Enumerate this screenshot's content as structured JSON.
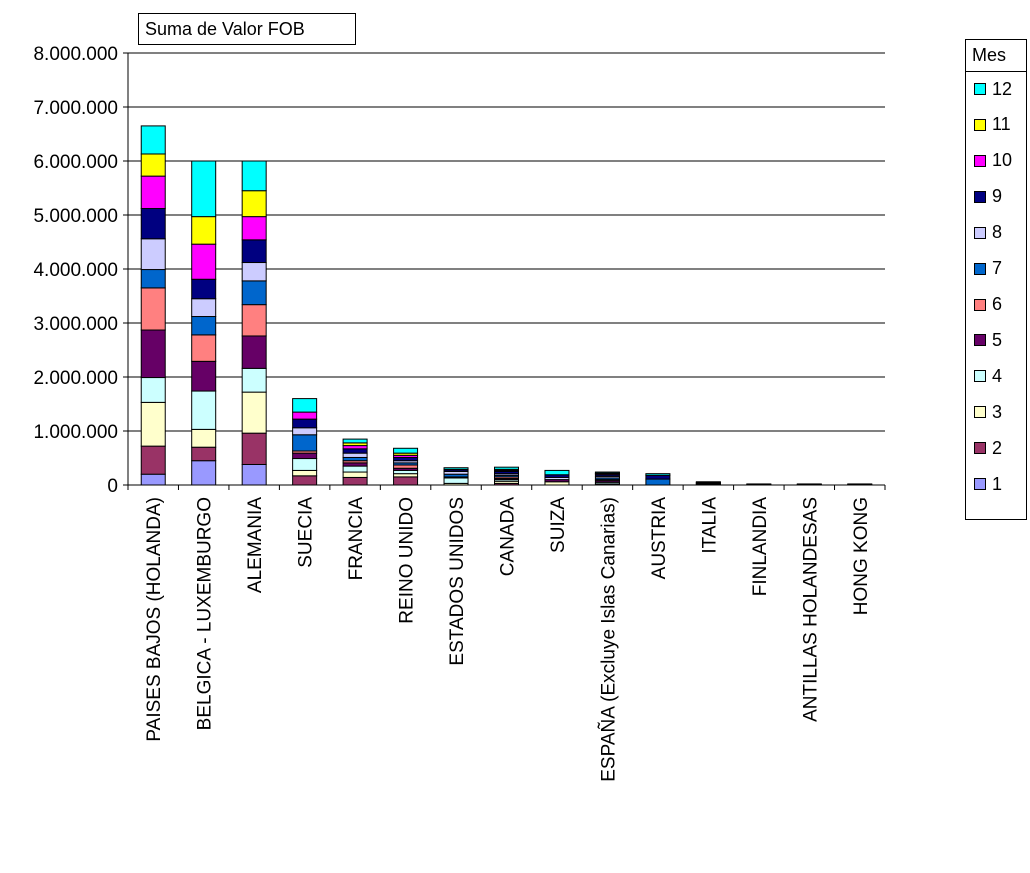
{
  "data_field_button": "Suma de Valor FOB",
  "legend_title": "Mes",
  "chart_data": {
    "type": "bar",
    "stacked": true,
    "ylim": [
      0,
      8000000
    ],
    "yticks": [
      0,
      1000000,
      2000000,
      3000000,
      4000000,
      5000000,
      6000000,
      7000000,
      8000000
    ],
    "ytick_labels": [
      "0",
      "1.000.000",
      "2.000.000",
      "3.000.000",
      "4.000.000",
      "5.000.000",
      "6.000.000",
      "7.000.000",
      "8.000.000"
    ],
    "grid": true,
    "legend_position": "right",
    "categories": [
      "PAISES BAJOS (HOLANDA)",
      "BELGICA - LUXEMBURGO",
      "ALEMANIA",
      "SUECIA",
      "FRANCIA",
      "REINO UNIDO",
      "ESTADOS UNIDOS",
      "CANADA",
      "SUIZA",
      "ESPAÑA (Excluye Islas Canarias)",
      "AUSTRIA",
      "ITALIA",
      "FINLANDIA",
      "ANTILLAS HOLANDESAS",
      "HONG KONG"
    ],
    "series": [
      {
        "name": "1",
        "color": "#9999FF",
        "values": [
          200000,
          450000,
          380000,
          0,
          0,
          0,
          0,
          0,
          0,
          0,
          0,
          0,
          0,
          0,
          0
        ]
      },
      {
        "name": "2",
        "color": "#993366",
        "values": [
          520000,
          250000,
          580000,
          170000,
          140000,
          150000,
          0,
          30000,
          0,
          0,
          0,
          0,
          0,
          0,
          0
        ]
      },
      {
        "name": "3",
        "color": "#FFFFCC",
        "values": [
          810000,
          330000,
          760000,
          100000,
          100000,
          60000,
          30000,
          40000,
          60000,
          20000,
          0,
          0,
          0,
          0,
          0
        ]
      },
      {
        "name": "4",
        "color": "#CCFFFF",
        "values": [
          460000,
          710000,
          440000,
          220000,
          110000,
          60000,
          100000,
          30000,
          0,
          30000,
          0,
          0,
          0,
          0,
          0
        ]
      },
      {
        "name": "5",
        "color": "#660066",
        "values": [
          880000,
          550000,
          600000,
          100000,
          60000,
          40000,
          20000,
          20000,
          40000,
          30000,
          0,
          10000,
          0,
          0,
          0
        ]
      },
      {
        "name": "6",
        "color": "#FF8080",
        "values": [
          780000,
          490000,
          580000,
          40000,
          40000,
          60000,
          0,
          30000,
          0,
          20000,
          0,
          0,
          0,
          0,
          0
        ]
      },
      {
        "name": "7",
        "color": "#0066CC",
        "values": [
          340000,
          340000,
          440000,
          300000,
          60000,
          40000,
          50000,
          30000,
          0,
          30000,
          110000,
          10000,
          10000,
          0,
          0
        ]
      },
      {
        "name": "8",
        "color": "#CCCCFF",
        "values": [
          570000,
          330000,
          340000,
          130000,
          80000,
          40000,
          50000,
          30000,
          40000,
          30000,
          0,
          10000,
          0,
          0,
          10000
        ]
      },
      {
        "name": "9",
        "color": "#000080",
        "values": [
          560000,
          360000,
          420000,
          160000,
          80000,
          60000,
          30000,
          40000,
          50000,
          30000,
          70000,
          10000,
          0,
          10000,
          0
        ]
      },
      {
        "name": "10",
        "color": "#FF00FF",
        "values": [
          600000,
          650000,
          430000,
          130000,
          60000,
          40000,
          0,
          20000,
          0,
          20000,
          0,
          10000,
          0,
          0,
          0
        ]
      },
      {
        "name": "11",
        "color": "#FFFF00",
        "values": [
          410000,
          510000,
          480000,
          0,
          50000,
          40000,
          10000,
          20000,
          0,
          10000,
          0,
          0,
          0,
          0,
          0
        ]
      },
      {
        "name": "12",
        "color": "#00FFFF",
        "values": [
          520000,
          1030000,
          550000,
          250000,
          70000,
          90000,
          30000,
          40000,
          80000,
          20000,
          30000,
          10000,
          10000,
          10000,
          10000
        ]
      }
    ]
  }
}
